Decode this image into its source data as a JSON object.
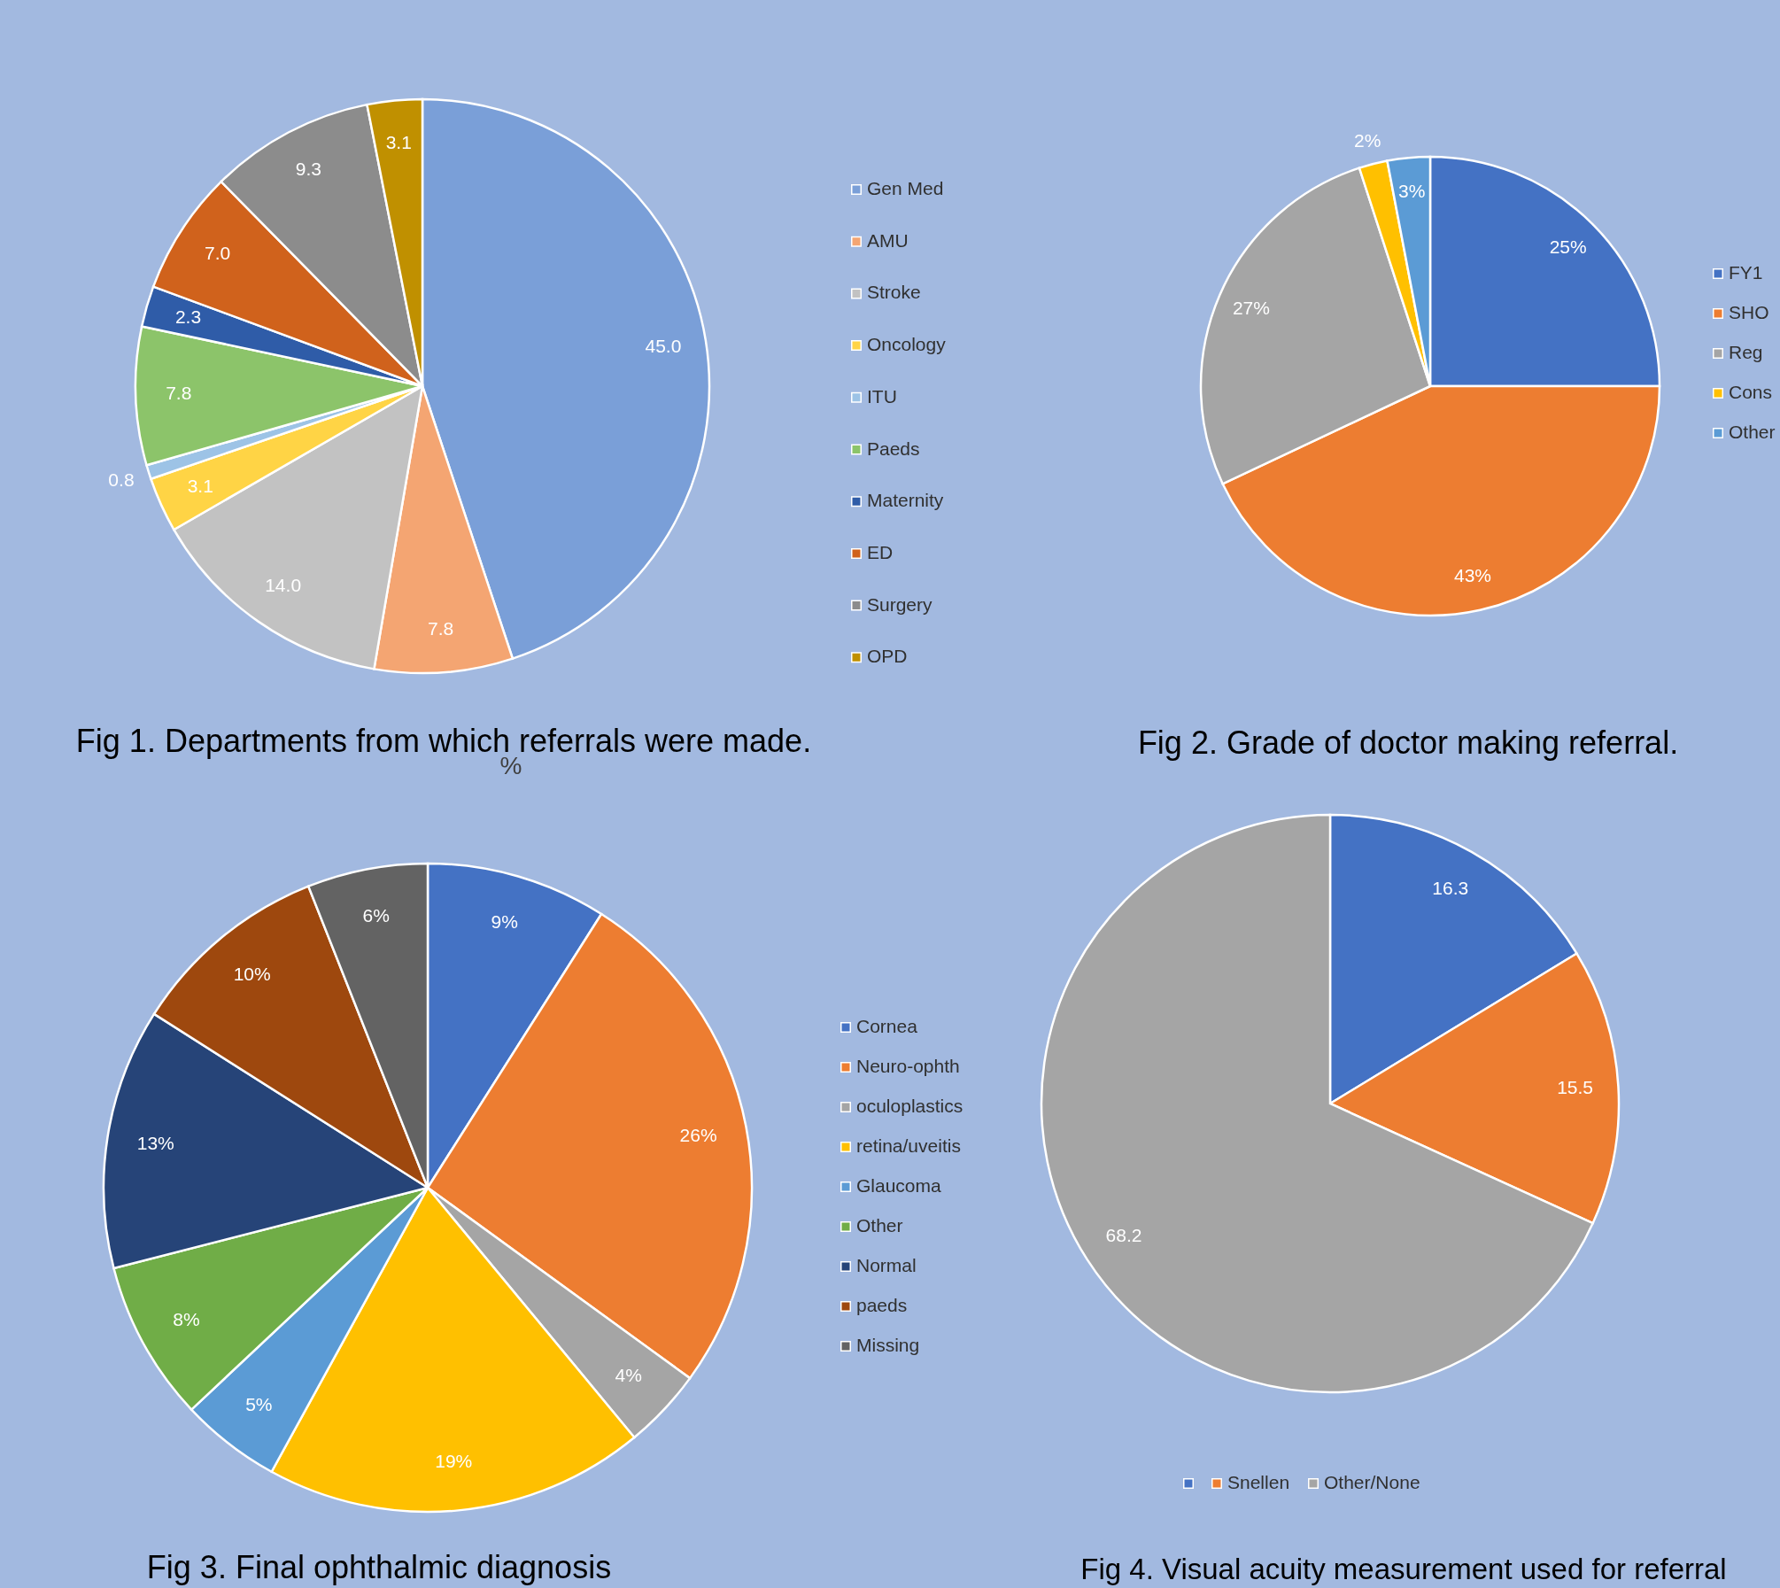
{
  "chart_data": [
    {
      "type": "pie",
      "title": "Fig 1. Departments from which referrals were made.",
      "categories": [
        "Gen Med",
        "AMU",
        "Stroke",
        "Oncology",
        "ITU",
        "Paeds",
        "Maternity",
        "ED",
        "Surgery",
        "OPD"
      ],
      "values": [
        45.0,
        7.8,
        14.0,
        3.1,
        0.8,
        7.8,
        2.3,
        7.0,
        9.3,
        3.1
      ],
      "value_labels": [
        "45.0",
        "7.8",
        "14.0",
        "3.1",
        "0.8",
        "7.8",
        "2.3",
        "7.0",
        "9.3",
        "3.1"
      ],
      "colors": [
        "#7a9fd8",
        "#f4a572",
        "#c2c2c2",
        "#ffd445",
        "#9dc3e6",
        "#8cc46a",
        "#2f5ca8",
        "#d0621c",
        "#8c8c8c",
        "#c09000"
      ],
      "legend": "right",
      "annotations": [
        "%"
      ]
    },
    {
      "type": "pie",
      "title": "Fig 2. Grade of doctor making referral.",
      "categories": [
        "FY1",
        "SHO",
        "Reg",
        "Cons",
        "Other"
      ],
      "values": [
        25,
        43,
        27,
        2,
        3
      ],
      "value_labels": [
        "25%",
        "43%",
        "27%",
        "2%",
        "3%"
      ],
      "colors": [
        "#4472c4",
        "#ed7d31",
        "#a5a5a5",
        "#ffc000",
        "#5b9bd5"
      ],
      "legend": "right"
    },
    {
      "type": "pie",
      "title": "Fig 3. Final ophthalmic diagnosis",
      "categories": [
        "Cornea",
        "Neuro-ophth",
        "oculoplastics",
        "retina/uveitis",
        "Glaucoma",
        "Other",
        "Normal",
        "paeds",
        "Missing"
      ],
      "values": [
        9,
        26,
        4,
        19,
        5,
        8,
        13,
        10,
        6
      ],
      "value_labels": [
        "9%",
        "26%",
        "4%",
        "19%",
        "5%",
        "8%",
        "13%",
        "10%",
        "6%"
      ],
      "colors": [
        "#4472c4",
        "#ed7d31",
        "#a5a5a5",
        "#ffc000",
        "#5b9bd5",
        "#70ad47",
        "#264478",
        "#9e480e",
        "#636363"
      ],
      "legend": "right"
    },
    {
      "type": "pie",
      "title": "Fig 4. Visual acuity measurement used for referral",
      "categories": [
        null,
        "Snellen",
        "Other/None"
      ],
      "values": [
        16.3,
        15.5,
        68.2
      ],
      "value_labels": [
        "16.3",
        "15.5",
        "68.2"
      ],
      "colors": [
        "#4472c4",
        "#ed7d31",
        "#a5a5a5"
      ],
      "legend": "bottom"
    }
  ]
}
